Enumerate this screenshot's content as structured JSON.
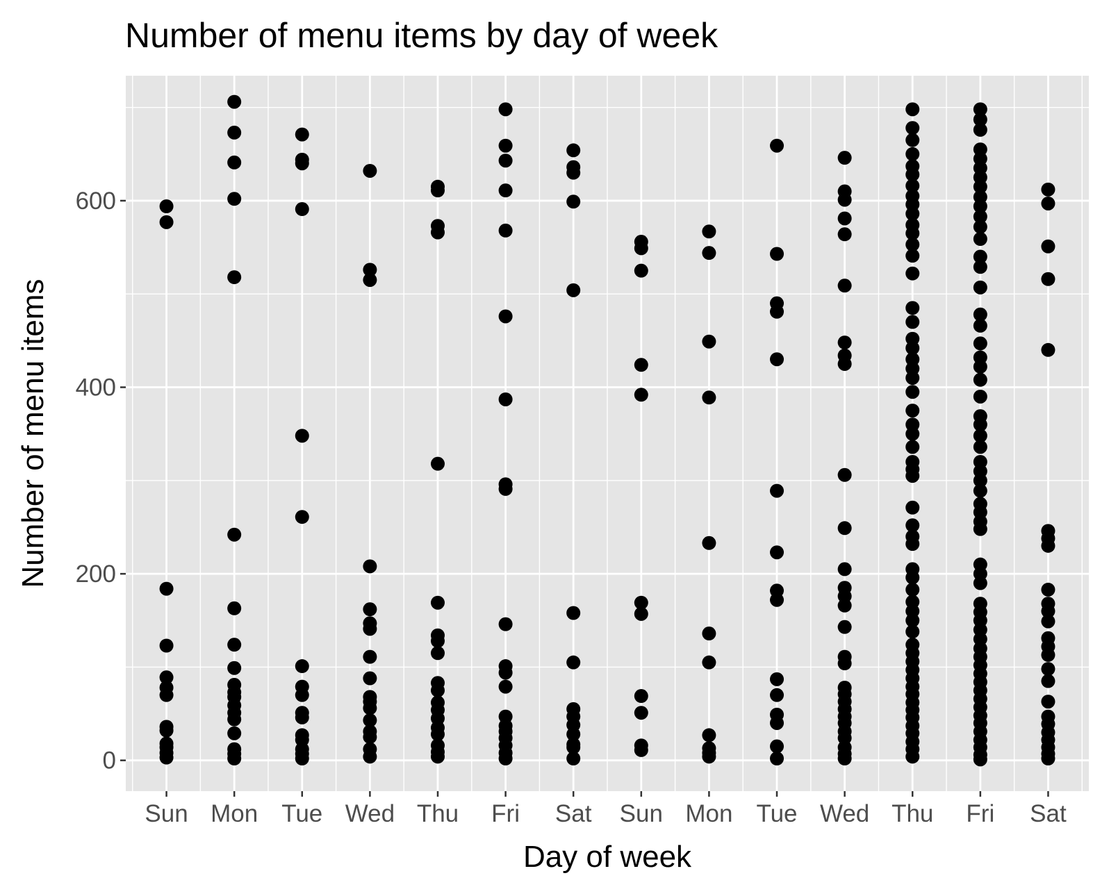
{
  "chart_data": {
    "type": "scatter",
    "title": "Number of menu items by day of week",
    "xlabel": "Day of week",
    "ylabel": "Number of menu items",
    "categories": [
      "Sun",
      "Mon",
      "Tue",
      "Wed",
      "Thu",
      "Fri",
      "Sat",
      "Sun",
      "Mon",
      "Tue",
      "Wed",
      "Thu",
      "Fri",
      "Sat"
    ],
    "ylim": [
      -33,
      734
    ],
    "yticks": [
      0,
      200,
      400,
      600
    ],
    "grid": true,
    "legend": "none",
    "colors": {
      "panel": "#e5e5e5",
      "grid": "#ffffff",
      "point": "#000000",
      "tick_text": "#4d4d4d"
    },
    "series": [
      {
        "values": [
          [
            1,
            594
          ],
          [
            1,
            577
          ],
          [
            1,
            184
          ],
          [
            1,
            123
          ],
          [
            1,
            89
          ],
          [
            1,
            78
          ],
          [
            1,
            70
          ],
          [
            1,
            36
          ],
          [
            1,
            32
          ],
          [
            1,
            18
          ],
          [
            1,
            14
          ],
          [
            1,
            8
          ],
          [
            1,
            3
          ],
          [
            2,
            706
          ],
          [
            2,
            673
          ],
          [
            2,
            641
          ],
          [
            2,
            602
          ],
          [
            2,
            518
          ],
          [
            2,
            242
          ],
          [
            2,
            163
          ],
          [
            2,
            124
          ],
          [
            2,
            99
          ],
          [
            2,
            81
          ],
          [
            2,
            73
          ],
          [
            2,
            68
          ],
          [
            2,
            59
          ],
          [
            2,
            51
          ],
          [
            2,
            44
          ],
          [
            2,
            29
          ],
          [
            2,
            12
          ],
          [
            2,
            7
          ],
          [
            2,
            2
          ],
          [
            3,
            671
          ],
          [
            3,
            644
          ],
          [
            3,
            640
          ],
          [
            3,
            591
          ],
          [
            3,
            348
          ],
          [
            3,
            261
          ],
          [
            3,
            101
          ],
          [
            3,
            79
          ],
          [
            3,
            70
          ],
          [
            3,
            51
          ],
          [
            3,
            46
          ],
          [
            3,
            27
          ],
          [
            3,
            22
          ],
          [
            3,
            12
          ],
          [
            3,
            7
          ],
          [
            3,
            2
          ],
          [
            4,
            632
          ],
          [
            4,
            526
          ],
          [
            4,
            515
          ],
          [
            4,
            208
          ],
          [
            4,
            162
          ],
          [
            4,
            147
          ],
          [
            4,
            141
          ],
          [
            4,
            111
          ],
          [
            4,
            88
          ],
          [
            4,
            68
          ],
          [
            4,
            63
          ],
          [
            4,
            56
          ],
          [
            4,
            43
          ],
          [
            4,
            31
          ],
          [
            4,
            25
          ],
          [
            4,
            12
          ],
          [
            4,
            4
          ],
          [
            5,
            615
          ],
          [
            5,
            611
          ],
          [
            5,
            573
          ],
          [
            5,
            566
          ],
          [
            5,
            318
          ],
          [
            5,
            169
          ],
          [
            5,
            134
          ],
          [
            5,
            128
          ],
          [
            5,
            115
          ],
          [
            5,
            83
          ],
          [
            5,
            75
          ],
          [
            5,
            62
          ],
          [
            5,
            54
          ],
          [
            5,
            45
          ],
          [
            5,
            35
          ],
          [
            5,
            28
          ],
          [
            5,
            16
          ],
          [
            5,
            9
          ],
          [
            5,
            4
          ],
          [
            6,
            698
          ],
          [
            6,
            659
          ],
          [
            6,
            643
          ],
          [
            6,
            611
          ],
          [
            6,
            568
          ],
          [
            6,
            476
          ],
          [
            6,
            387
          ],
          [
            6,
            296
          ],
          [
            6,
            291
          ],
          [
            6,
            146
          ],
          [
            6,
            101
          ],
          [
            6,
            94
          ],
          [
            6,
            79
          ],
          [
            6,
            47
          ],
          [
            6,
            37
          ],
          [
            6,
            31
          ],
          [
            6,
            24
          ],
          [
            6,
            16
          ],
          [
            6,
            8
          ],
          [
            6,
            2
          ],
          [
            7,
            654
          ],
          [
            7,
            636
          ],
          [
            7,
            630
          ],
          [
            7,
            599
          ],
          [
            7,
            504
          ],
          [
            7,
            158
          ],
          [
            7,
            105
          ],
          [
            7,
            55
          ],
          [
            7,
            47
          ],
          [
            7,
            38
          ],
          [
            7,
            28
          ],
          [
            7,
            17
          ],
          [
            7,
            14
          ],
          [
            7,
            2
          ],
          [
            8,
            556
          ],
          [
            8,
            549
          ],
          [
            8,
            525
          ],
          [
            8,
            424
          ],
          [
            8,
            392
          ],
          [
            8,
            169
          ],
          [
            8,
            157
          ],
          [
            8,
            69
          ],
          [
            8,
            51
          ],
          [
            8,
            16
          ],
          [
            8,
            11
          ],
          [
            9,
            567
          ],
          [
            9,
            544
          ],
          [
            9,
            449
          ],
          [
            9,
            389
          ],
          [
            9,
            233
          ],
          [
            9,
            136
          ],
          [
            9,
            105
          ],
          [
            9,
            27
          ],
          [
            9,
            13
          ],
          [
            9,
            8
          ],
          [
            9,
            4
          ],
          [
            10,
            659
          ],
          [
            10,
            543
          ],
          [
            10,
            490
          ],
          [
            10,
            481
          ],
          [
            10,
            430
          ],
          [
            10,
            289
          ],
          [
            10,
            223
          ],
          [
            10,
            182
          ],
          [
            10,
            172
          ],
          [
            10,
            87
          ],
          [
            10,
            70
          ],
          [
            10,
            49
          ],
          [
            10,
            40
          ],
          [
            10,
            15
          ],
          [
            10,
            2
          ],
          [
            11,
            646
          ],
          [
            11,
            610
          ],
          [
            11,
            601
          ],
          [
            11,
            581
          ],
          [
            11,
            564
          ],
          [
            11,
            509
          ],
          [
            11,
            448
          ],
          [
            11,
            434
          ],
          [
            11,
            425
          ],
          [
            11,
            306
          ],
          [
            11,
            249
          ],
          [
            11,
            205
          ],
          [
            11,
            185
          ],
          [
            11,
            176
          ],
          [
            11,
            166
          ],
          [
            11,
            143
          ],
          [
            11,
            111
          ],
          [
            11,
            104
          ],
          [
            11,
            78
          ],
          [
            11,
            71
          ],
          [
            11,
            63
          ],
          [
            11,
            55
          ],
          [
            11,
            47
          ],
          [
            11,
            40
          ],
          [
            11,
            31
          ],
          [
            11,
            24
          ],
          [
            11,
            14
          ],
          [
            11,
            7
          ],
          [
            11,
            2
          ],
          [
            12,
            698
          ],
          [
            12,
            678
          ],
          [
            12,
            665
          ],
          [
            12,
            650
          ],
          [
            12,
            637
          ],
          [
            12,
            628
          ],
          [
            12,
            616
          ],
          [
            12,
            605
          ],
          [
            12,
            596
          ],
          [
            12,
            586
          ],
          [
            12,
            574
          ],
          [
            12,
            565
          ],
          [
            12,
            553
          ],
          [
            12,
            541
          ],
          [
            12,
            522
          ],
          [
            12,
            485
          ],
          [
            12,
            470
          ],
          [
            12,
            452
          ],
          [
            12,
            442
          ],
          [
            12,
            430
          ],
          [
            12,
            420
          ],
          [
            12,
            410
          ],
          [
            12,
            395
          ],
          [
            12,
            375
          ],
          [
            12,
            360
          ],
          [
            12,
            350
          ],
          [
            12,
            336
          ],
          [
            12,
            320
          ],
          [
            12,
            312
          ],
          [
            12,
            305
          ],
          [
            12,
            271
          ],
          [
            12,
            252
          ],
          [
            12,
            240
          ],
          [
            12,
            232
          ],
          [
            12,
            205
          ],
          [
            12,
            196
          ],
          [
            12,
            183
          ],
          [
            12,
            170
          ],
          [
            12,
            160
          ],
          [
            12,
            150
          ],
          [
            12,
            138
          ],
          [
            12,
            124
          ],
          [
            12,
            115
          ],
          [
            12,
            106
          ],
          [
            12,
            97
          ],
          [
            12,
            88
          ],
          [
            12,
            79
          ],
          [
            12,
            71
          ],
          [
            12,
            62
          ],
          [
            12,
            54
          ],
          [
            12,
            46
          ],
          [
            12,
            37
          ],
          [
            12,
            29
          ],
          [
            12,
            20
          ],
          [
            12,
            12
          ],
          [
            12,
            4
          ],
          [
            13,
            698
          ],
          [
            13,
            687
          ],
          [
            13,
            676
          ],
          [
            13,
            655
          ],
          [
            13,
            645
          ],
          [
            13,
            635
          ],
          [
            13,
            625
          ],
          [
            13,
            615
          ],
          [
            13,
            604
          ],
          [
            13,
            594
          ],
          [
            13,
            583
          ],
          [
            13,
            572
          ],
          [
            13,
            559
          ],
          [
            13,
            540
          ],
          [
            13,
            529
          ],
          [
            13,
            507
          ],
          [
            13,
            478
          ],
          [
            13,
            466
          ],
          [
            13,
            447
          ],
          [
            13,
            432
          ],
          [
            13,
            422
          ],
          [
            13,
            408
          ],
          [
            13,
            390
          ],
          [
            13,
            369
          ],
          [
            13,
            360
          ],
          [
            13,
            348
          ],
          [
            13,
            336
          ],
          [
            13,
            320
          ],
          [
            13,
            310
          ],
          [
            13,
            300
          ],
          [
            13,
            289
          ],
          [
            13,
            275
          ],
          [
            13,
            266
          ],
          [
            13,
            256
          ],
          [
            13,
            248
          ],
          [
            13,
            210
          ],
          [
            13,
            200
          ],
          [
            13,
            190
          ],
          [
            13,
            168
          ],
          [
            13,
            159
          ],
          [
            13,
            150
          ],
          [
            13,
            140
          ],
          [
            13,
            130
          ],
          [
            13,
            120
          ],
          [
            13,
            111
          ],
          [
            13,
            102
          ],
          [
            13,
            93
          ],
          [
            13,
            84
          ],
          [
            13,
            75
          ],
          [
            13,
            66
          ],
          [
            13,
            57
          ],
          [
            13,
            48
          ],
          [
            13,
            40
          ],
          [
            13,
            31
          ],
          [
            13,
            22
          ],
          [
            13,
            14
          ],
          [
            13,
            6
          ],
          [
            13,
            1
          ],
          [
            14,
            612
          ],
          [
            14,
            597
          ],
          [
            14,
            551
          ],
          [
            14,
            516
          ],
          [
            14,
            440
          ],
          [
            14,
            246
          ],
          [
            14,
            238
          ],
          [
            14,
            230
          ],
          [
            14,
            183
          ],
          [
            14,
            168
          ],
          [
            14,
            160
          ],
          [
            14,
            149
          ],
          [
            14,
            131
          ],
          [
            14,
            122
          ],
          [
            14,
            113
          ],
          [
            14,
            98
          ],
          [
            14,
            85
          ],
          [
            14,
            63
          ],
          [
            14,
            47
          ],
          [
            14,
            39
          ],
          [
            14,
            30
          ],
          [
            14,
            22
          ],
          [
            14,
            14
          ],
          [
            14,
            7
          ],
          [
            14,
            2
          ]
        ]
      }
    ]
  }
}
